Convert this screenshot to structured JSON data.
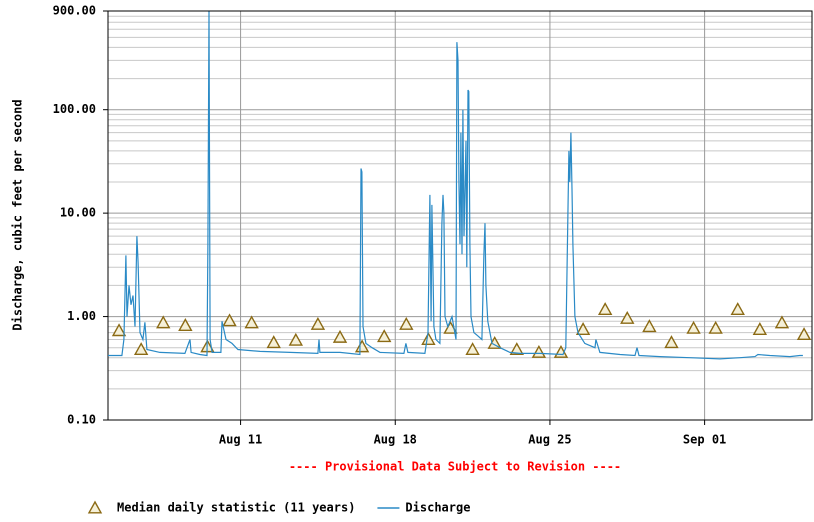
{
  "chart_data": {
    "type": "line",
    "y_label": "Discharge, cubic feet per second",
    "annotation": "---- Provisional Data Subject to Revision ----",
    "log_y": true,
    "grid": true,
    "xlim": [
      0,
      31.86
    ],
    "xticks": [
      {
        "value": 6,
        "label": "Aug 11"
      },
      {
        "value": 13,
        "label": "Aug 18"
      },
      {
        "value": 20,
        "label": "Aug 25"
      },
      {
        "value": 27,
        "label": "Sep 01"
      }
    ],
    "ylim": [
      0.1,
      900
    ],
    "yticks": [
      {
        "value": 0.1,
        "label": "0.10"
      },
      {
        "value": 1,
        "label": "1.00"
      },
      {
        "value": 10,
        "label": "10.00"
      },
      {
        "value": 100,
        "label": "100.00"
      },
      {
        "value": 900,
        "label": "900.00"
      }
    ],
    "series": [
      {
        "name": "Median daily statistic (11 years)",
        "type": "scatter",
        "marker": "triangle",
        "color": "#8b6a14",
        "x": [
          0.5,
          1.5,
          2.5,
          3.5,
          4.5,
          5.5,
          6.5,
          7.5,
          8.5,
          9.5,
          10.5,
          11.5,
          12.5,
          13.5,
          14.5,
          15.5,
          16.5,
          17.5,
          18.5,
          19.5,
          20.5,
          21.5,
          22.5,
          23.5,
          24.5,
          25.5,
          26.5,
          27.5,
          28.5,
          29.5,
          30.5,
          31.5
        ],
        "values": [
          0.73,
          0.48,
          0.87,
          0.82,
          0.51,
          0.91,
          0.87,
          0.56,
          0.59,
          0.84,
          0.63,
          0.51,
          0.64,
          0.84,
          0.6,
          0.77,
          0.48,
          0.55,
          0.48,
          0.45,
          0.45,
          0.75,
          1.17,
          0.96,
          0.8,
          0.56,
          0.77,
          0.77,
          1.17,
          0.75,
          0.87,
          0.67
        ]
      },
      {
        "name": "Discharge",
        "type": "line",
        "color": "#2a8ac6",
        "x": [
          0,
          0.63,
          0.72,
          0.81,
          0.86,
          0.95,
          1.04,
          1.13,
          1.22,
          1.31,
          1.36,
          1.45,
          1.58,
          1.67,
          1.76,
          2.35,
          3.48,
          3.71,
          3.76,
          4.16,
          4.48,
          4.52,
          4.57,
          4.62,
          4.71,
          5.11,
          5.16,
          5.34,
          5.61,
          5.88,
          6.88,
          8.24,
          9.5,
          9.55,
          9.59,
          10.5,
          11.4,
          11.45,
          11.49,
          11.54,
          11.67,
          11.95,
          12.31,
          13.39,
          13.48,
          13.57,
          14.34,
          14.48,
          14.57,
          14.62,
          14.66,
          14.75,
          14.84,
          15.02,
          15.11,
          15.16,
          15.2,
          15.25,
          15.38,
          15.57,
          15.75,
          15.79,
          15.84,
          15.88,
          15.93,
          15.97,
          16.02,
          16.06,
          16.11,
          16.2,
          16.24,
          16.29,
          16.33,
          16.38,
          16.43,
          16.56,
          16.74,
          16.92,
          17.01,
          17.06,
          17.1,
          17.19,
          17.38,
          17.74,
          18.19,
          18.64,
          19.55,
          20.59,
          20.72,
          20.86,
          20.9,
          20.95,
          21,
          21.04,
          21.13,
          21.27,
          21.58,
          22.04,
          22.08,
          22.26,
          23.17,
          23.85,
          23.94,
          24.03,
          24.98,
          26.33,
          27.69,
          28.6,
          29.28,
          29.41,
          29.95,
          30.86,
          31.31,
          31.45
        ],
        "values": [
          0.42,
          0.42,
          0.6,
          3.9,
          1.0,
          2.0,
          1.3,
          1.6,
          0.8,
          6.0,
          3.3,
          0.7,
          0.6,
          0.88,
          0.48,
          0.45,
          0.44,
          0.6,
          0.45,
          0.43,
          0.42,
          5,
          890,
          0.6,
          0.45,
          0.45,
          0.9,
          0.6,
          0.55,
          0.48,
          0.46,
          0.45,
          0.44,
          0.6,
          0.45,
          0.45,
          0.43,
          27,
          25,
          0.8,
          0.55,
          0.5,
          0.45,
          0.44,
          0.55,
          0.45,
          0.44,
          0.7,
          15,
          0.9,
          12,
          0.8,
          0.6,
          0.55,
          8,
          15,
          10,
          1.0,
          0.8,
          1.0,
          0.6,
          450,
          300,
          20,
          5,
          60,
          4,
          100,
          6,
          50,
          3,
          155,
          150,
          5,
          1.0,
          0.7,
          0.65,
          0.6,
          4,
          8,
          2,
          0.9,
          0.55,
          0.5,
          0.45,
          0.44,
          0.44,
          0.43,
          0.5,
          40,
          20,
          60,
          17,
          5,
          1.0,
          0.7,
          0.55,
          0.5,
          0.6,
          0.45,
          0.43,
          0.42,
          0.5,
          0.42,
          0.41,
          0.4,
          0.39,
          0.4,
          0.41,
          0.43,
          0.42,
          0.41,
          0.42,
          0.42
        ]
      }
    ]
  }
}
